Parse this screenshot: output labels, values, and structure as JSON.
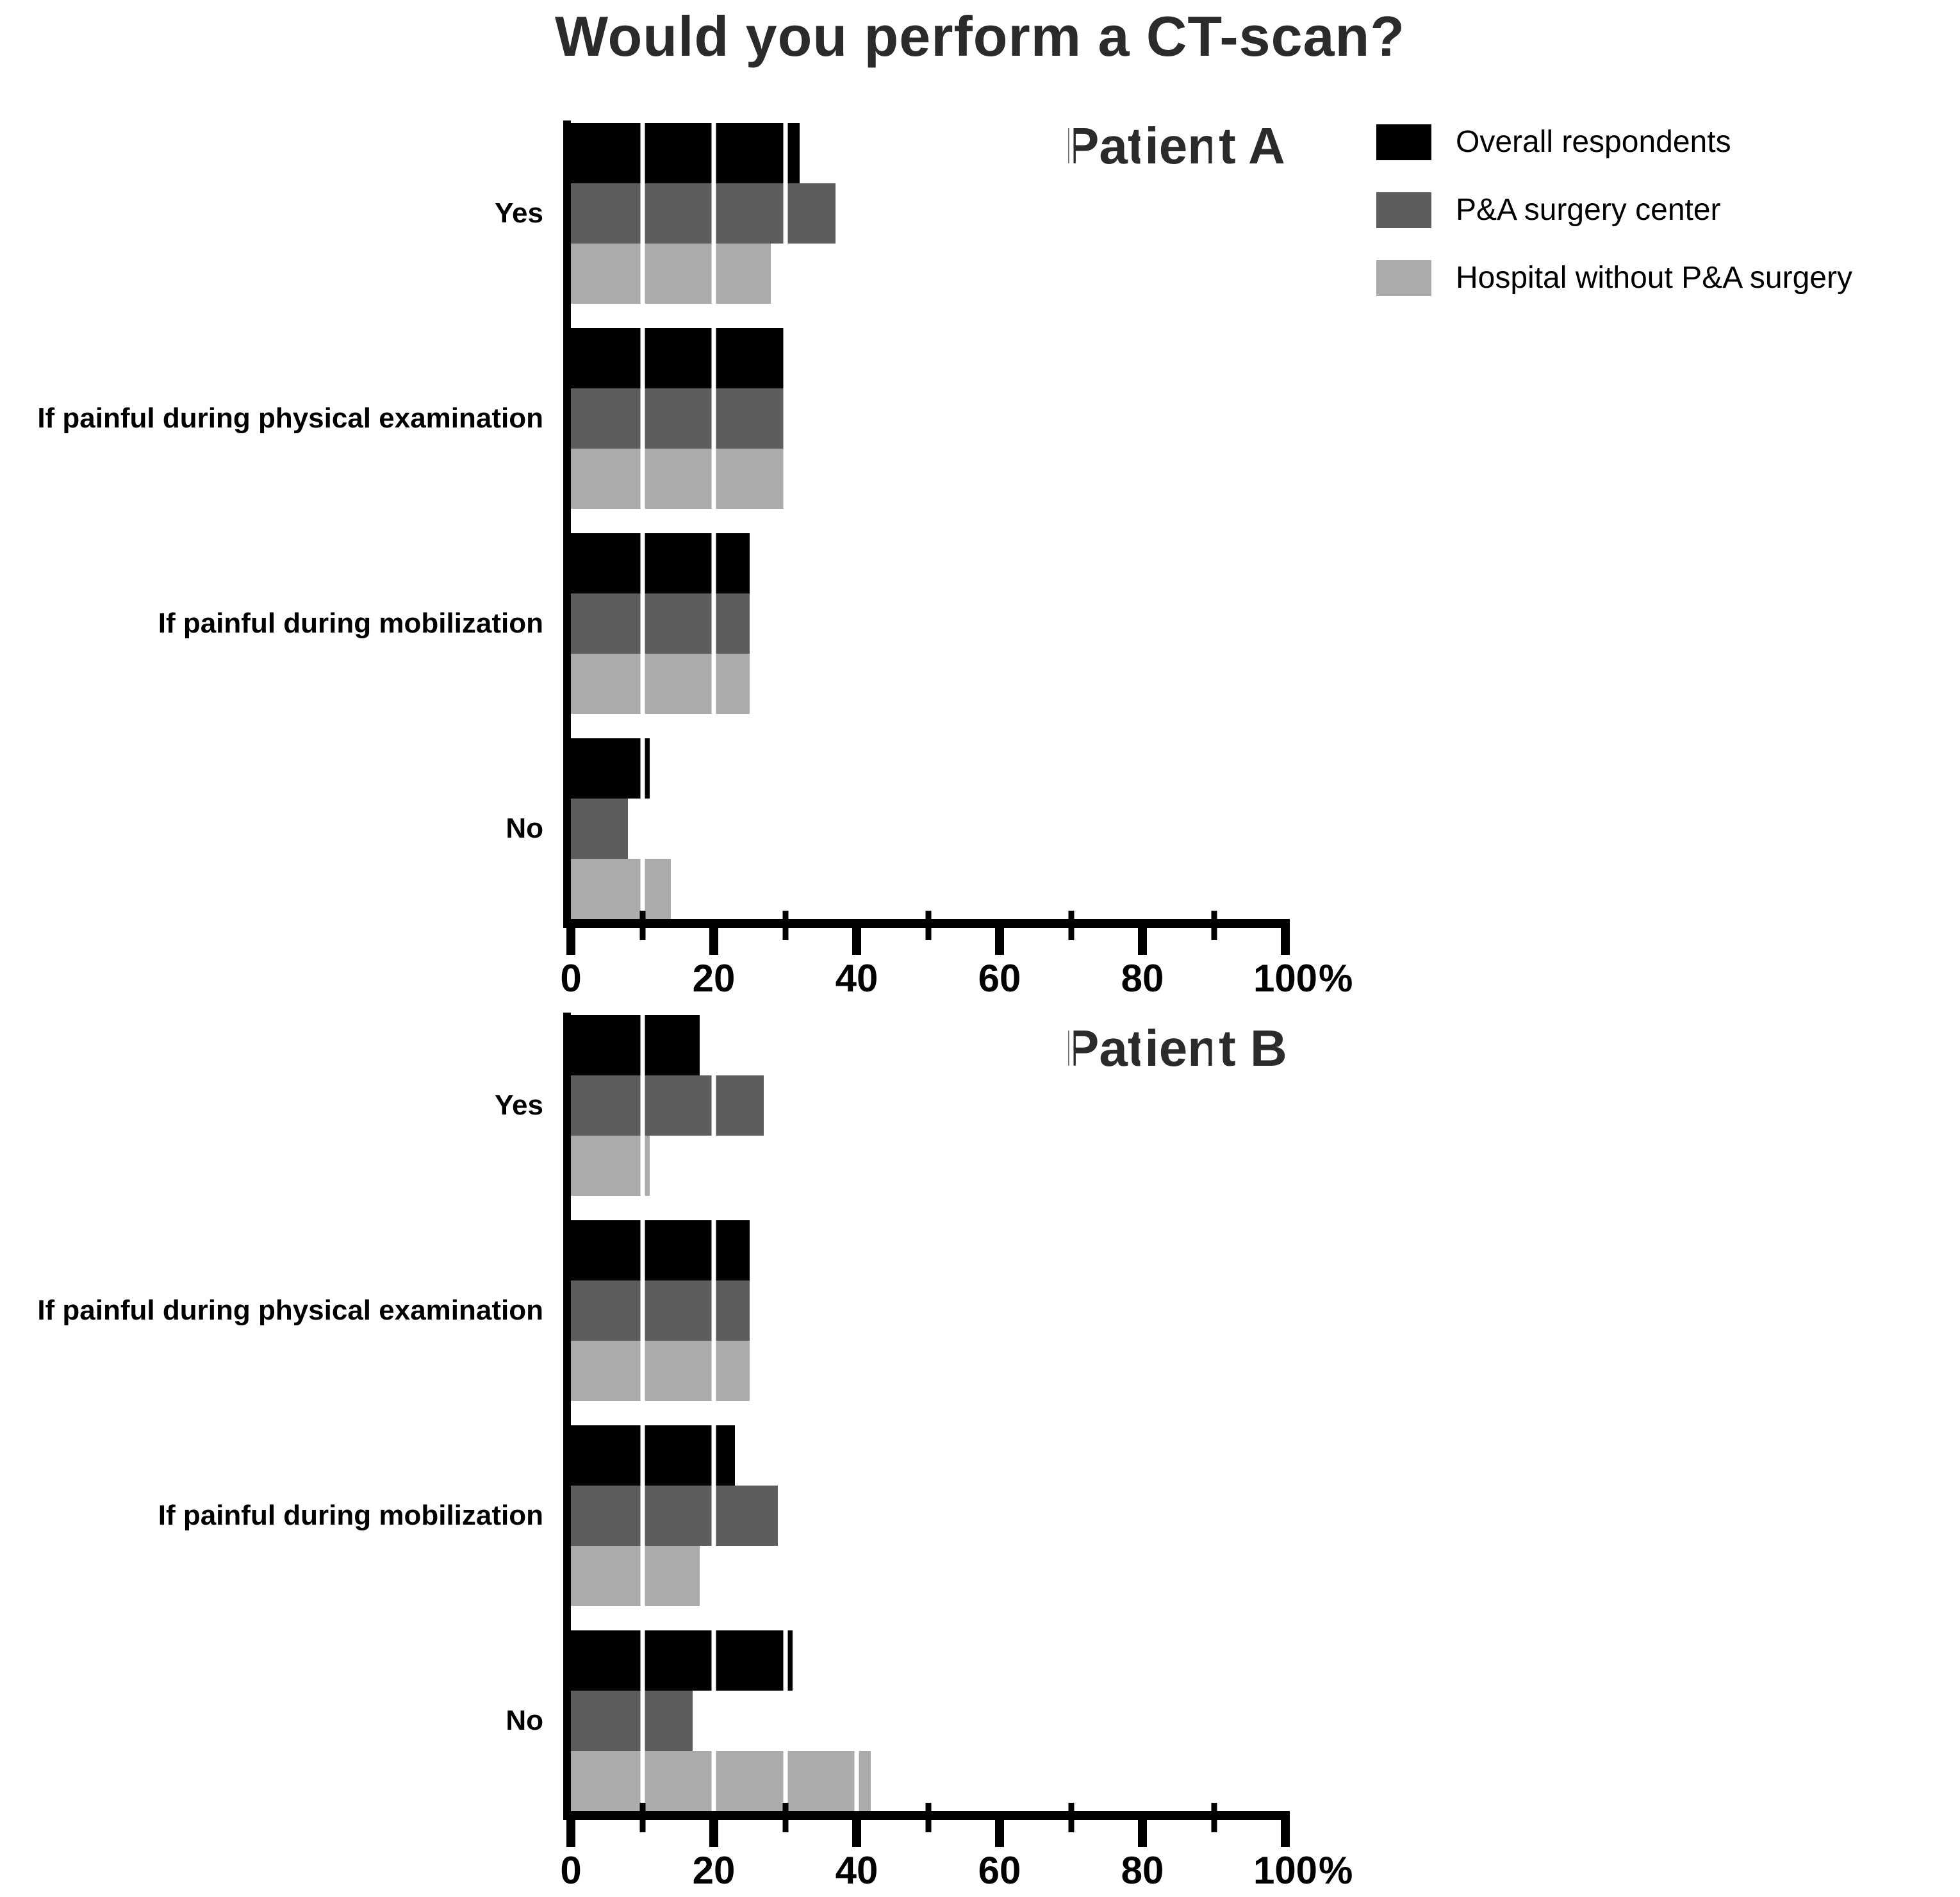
{
  "title": "Would you perform a CT-scan?",
  "legend": {
    "position": "top-right",
    "items": [
      {
        "label": "Overall respondents",
        "color": "#000000"
      },
      {
        "label": "P&A surgery center",
        "color": "#5d5d5d"
      },
      {
        "label": "Hospital without P&A surgery",
        "color": "#ababab"
      }
    ]
  },
  "chart_data": [
    {
      "type": "bar",
      "orientation": "horizontal",
      "title": "Patient A",
      "categories": [
        "Yes",
        "If painful during physical examination",
        "If painful during mobilization",
        "No"
      ],
      "series": [
        {
          "name": "Overall respondents",
          "color": "#000000",
          "values": [
            32,
            30,
            25,
            11
          ]
        },
        {
          "name": "P&A surgery center",
          "color": "#5d5d5d",
          "values": [
            37,
            30,
            25,
            8
          ]
        },
        {
          "name": "Hospital without P&A surgery",
          "color": "#ababab",
          "values": [
            28,
            30,
            25,
            14
          ]
        }
      ],
      "xlim": [
        0,
        100
      ],
      "xticks": [
        0,
        20,
        40,
        60,
        80,
        100
      ],
      "xtick_suffix": "%",
      "grid": "white vertical lines every 10% over bars, minor axis ticks every 10%"
    },
    {
      "type": "bar",
      "orientation": "horizontal",
      "title": "Patient B",
      "categories": [
        "Yes",
        "If painful during physical examination",
        "If painful during mobilization",
        "No"
      ],
      "series": [
        {
          "name": "Overall respondents",
          "color": "#000000",
          "values": [
            18,
            25,
            23,
            31
          ]
        },
        {
          "name": "P&A surgery center",
          "color": "#5d5d5d",
          "values": [
            27,
            25,
            29,
            17
          ]
        },
        {
          "name": "Hospital without P&A surgery",
          "color": "#ababab",
          "values": [
            11,
            25,
            18,
            42
          ]
        }
      ],
      "xlim": [
        0,
        100
      ],
      "xticks": [
        0,
        20,
        40,
        60,
        80,
        100
      ],
      "xtick_suffix": "%",
      "grid": "white vertical lines every 10% over bars, minor axis ticks every 10%"
    }
  ]
}
